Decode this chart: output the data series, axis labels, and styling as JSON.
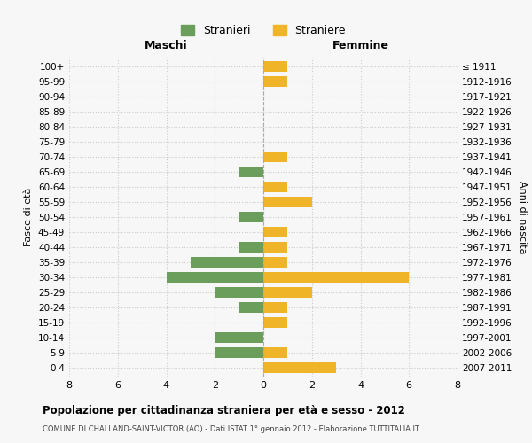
{
  "age_groups": [
    "0-4",
    "5-9",
    "10-14",
    "15-19",
    "20-24",
    "25-29",
    "30-34",
    "35-39",
    "40-44",
    "45-49",
    "50-54",
    "55-59",
    "60-64",
    "65-69",
    "70-74",
    "75-79",
    "80-84",
    "85-89",
    "90-94",
    "95-99",
    "100+"
  ],
  "birth_years": [
    "2007-2011",
    "2002-2006",
    "1997-2001",
    "1992-1996",
    "1987-1991",
    "1982-1986",
    "1977-1981",
    "1972-1976",
    "1967-1971",
    "1962-1966",
    "1957-1961",
    "1952-1956",
    "1947-1951",
    "1942-1946",
    "1937-1941",
    "1932-1936",
    "1927-1931",
    "1922-1926",
    "1917-1921",
    "1912-1916",
    "≤ 1911"
  ],
  "stranieri": [
    0,
    2,
    2,
    0,
    1,
    2,
    4,
    3,
    1,
    0,
    1,
    0,
    0,
    1,
    0,
    0,
    0,
    0,
    0,
    0,
    0
  ],
  "straniere": [
    3,
    1,
    0,
    1,
    1,
    2,
    6,
    1,
    1,
    1,
    0,
    2,
    1,
    0,
    1,
    0,
    0,
    0,
    0,
    1,
    1
  ],
  "color_stranieri": "#6a9e5a",
  "color_straniere": "#f0b429",
  "xlim": 8,
  "title": "Popolazione per cittadinanza straniera per età e sesso - 2012",
  "subtitle": "COMUNE DI CHALLAND-SAINT-VICTOR (AO) - Dati ISTAT 1° gennaio 2012 - Elaborazione TUTTITALIA.IT",
  "ylabel_left": "Fasce di età",
  "ylabel_right": "Anni di nascita",
  "xlabel_maschi": "Maschi",
  "xlabel_femmine": "Femmine",
  "legend_stranieri": "Stranieri",
  "legend_straniere": "Straniere",
  "bg_color": "#f7f7f7",
  "grid_color": "#cccccc"
}
